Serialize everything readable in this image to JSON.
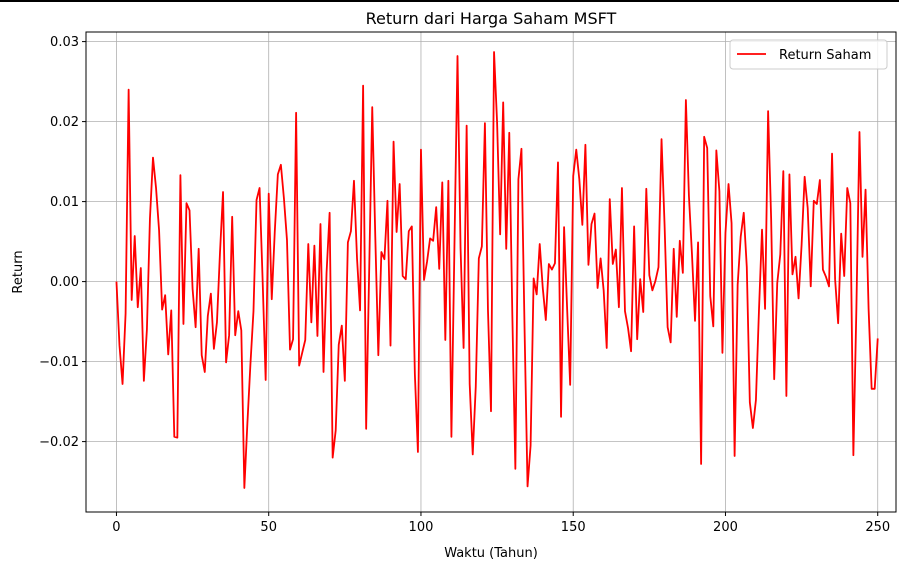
{
  "chart_data": {
    "type": "line",
    "title": "Return dari Harga Saham MSFT",
    "xlabel": "Waktu (Tahun)",
    "ylabel": "Return",
    "xlim": [
      -10,
      256
    ],
    "ylim": [
      -0.0288,
      0.0312
    ],
    "x_ticks": [
      0,
      50,
      100,
      150,
      200,
      250
    ],
    "x_tick_labels": [
      "0",
      "50",
      "100",
      "150",
      "200",
      "250"
    ],
    "y_ticks": [
      -0.02,
      -0.01,
      0.0,
      0.01,
      0.02,
      0.03
    ],
    "y_tick_labels": [
      "−0.02",
      "−0.01",
      "0.00",
      "0.01",
      "0.02",
      "0.03"
    ],
    "grid": true,
    "legend_position": "top-right",
    "series": [
      {
        "name": "Return Saham",
        "color": "#ff0000",
        "x_start": 0,
        "x_step": 1,
        "values": [
          0.0,
          -0.008,
          -0.0128,
          -0.004,
          0.024,
          -0.0023,
          0.0057,
          -0.0032,
          0.0017,
          -0.0124,
          -0.006,
          0.0079,
          0.0155,
          0.0117,
          0.0064,
          -0.0035,
          -0.0017,
          -0.0091,
          -0.0036,
          -0.0194,
          -0.0195,
          0.0133,
          -0.0053,
          0.0098,
          0.0089,
          -0.0009,
          -0.0057,
          0.0041,
          -0.0092,
          -0.0113,
          -0.0043,
          -0.0015,
          -0.0084,
          -0.0051,
          0.0036,
          0.0112,
          -0.0101,
          -0.0067,
          0.0081,
          -0.0067,
          -0.0037,
          -0.0061,
          -0.0258,
          -0.0177,
          -0.0103,
          -0.0037,
          0.0102,
          0.0117,
          0.0002,
          -0.0123,
          0.011,
          -0.0022,
          0.0063,
          0.0134,
          0.0146,
          0.0104,
          0.0052,
          -0.0085,
          -0.0072,
          0.0211,
          -0.0105,
          -0.0089,
          -0.0073,
          0.0047,
          -0.0051,
          0.0045,
          -0.0068,
          0.0072,
          -0.0113,
          0.0011,
          0.0086,
          -0.022,
          -0.0186,
          -0.0079,
          -0.0055,
          -0.0124,
          0.0049,
          0.0063,
          0.0126,
          0.0029,
          -0.0036,
          0.0245,
          -0.0184,
          0.0015,
          0.0218,
          0.0056,
          -0.0092,
          0.0037,
          0.0028,
          0.0101,
          -0.008,
          0.0175,
          0.0062,
          0.0122,
          0.0007,
          0.0003,
          0.0063,
          0.0069,
          -0.0116,
          -0.0213,
          0.0165,
          0.0002,
          0.0025,
          0.0054,
          0.0051,
          0.0093,
          0.0016,
          0.0124,
          -0.0073,
          0.0126,
          -0.0194,
          0.0046,
          0.0282,
          0.0042,
          -0.0083,
          0.0195,
          -0.0128,
          -0.0216,
          -0.0131,
          0.0029,
          0.0044,
          0.0198,
          -0.0035,
          -0.0162,
          0.0287,
          0.0199,
          0.0059,
          0.0224,
          0.0041,
          0.0186,
          -0.0041,
          -0.0234,
          0.0128,
          0.0166,
          -0.0055,
          -0.0256,
          -0.0205,
          0.0004,
          -0.0016,
          0.0047,
          -0.0008,
          -0.0048,
          0.0022,
          0.0015,
          0.0023,
          0.0149,
          -0.0169,
          0.0068,
          -0.0034,
          -0.0129,
          0.0132,
          0.0165,
          0.0128,
          0.0071,
          0.0171,
          0.0021,
          0.0072,
          0.0085,
          -0.0008,
          0.0029,
          -0.0011,
          -0.0083,
          0.0103,
          0.0022,
          0.004,
          -0.0032,
          0.0117,
          -0.0037,
          -0.0058,
          -0.0087,
          0.0069,
          -0.0072,
          0.0003,
          -0.0038,
          0.0116,
          0.0008,
          -0.0011,
          0.0001,
          0.0018,
          0.0178,
          0.0071,
          -0.0057,
          -0.0076,
          0.0041,
          -0.0044,
          0.0051,
          0.0011,
          0.0227,
          0.0107,
          0.0034,
          -0.0049,
          0.0049,
          -0.0228,
          0.0181,
          0.0167,
          -0.0018,
          -0.0056,
          0.0164,
          0.0113,
          -0.0089,
          0.0061,
          0.0122,
          0.0073,
          -0.0218,
          -0.0004,
          0.0056,
          0.0086,
          0.0018,
          -0.0151,
          -0.0183,
          -0.0148,
          -0.0036,
          0.0065,
          -0.0034,
          0.0213,
          0.0078,
          -0.0122,
          -0.0002,
          0.0034,
          0.0138,
          -0.0143,
          0.0134,
          0.0009,
          0.0031,
          -0.0021,
          0.0046,
          0.0131,
          0.0092,
          -0.0006,
          0.0101,
          0.0097,
          0.0127,
          0.0015,
          0.0006,
          -0.0006,
          0.016,
          0.0003,
          -0.0052,
          0.006,
          0.0007,
          0.0117,
          0.0098,
          -0.0217,
          -0.0032,
          0.0187,
          0.0031,
          0.0115,
          -0.0034,
          -0.0134,
          -0.0134,
          -0.0071
        ]
      }
    ]
  }
}
